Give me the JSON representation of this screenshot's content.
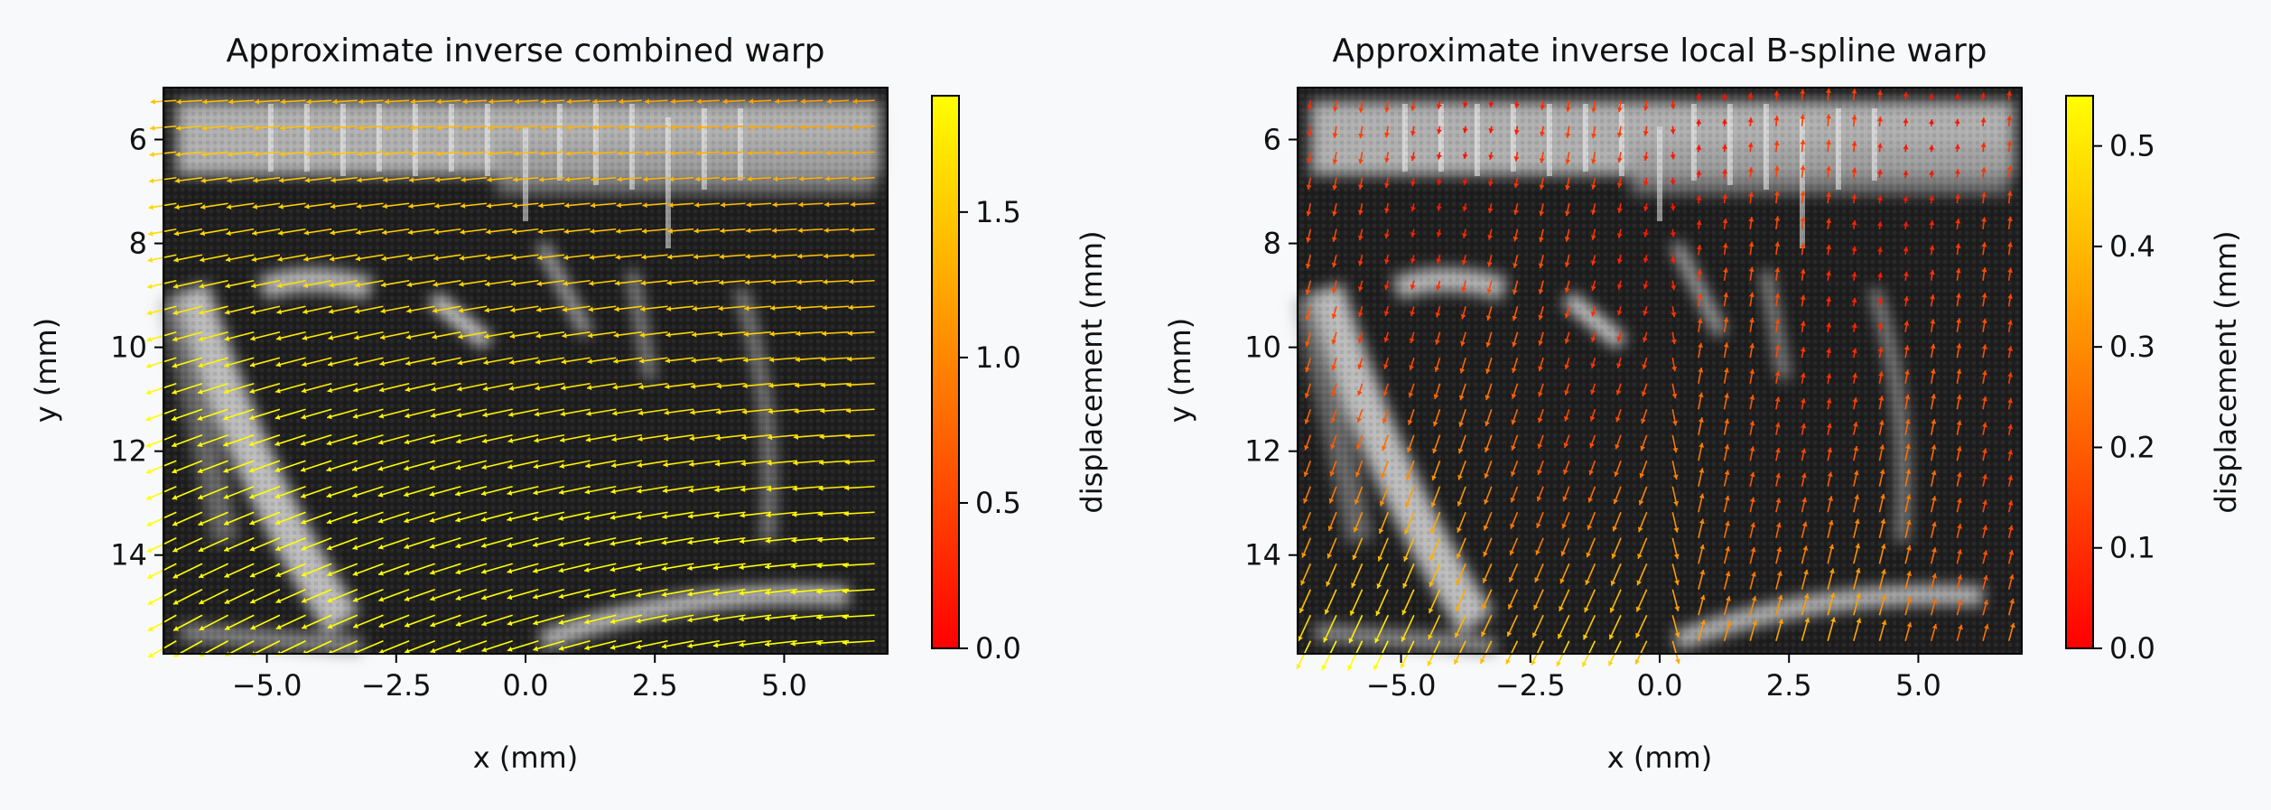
{
  "chart_data": [
    {
      "type": "heatmap",
      "subtype": "image-with-quiver",
      "title": "Approximate inverse combined warp",
      "xlabel": "x (mm)",
      "ylabel": "y (mm)",
      "xlim": [
        -7.0,
        7.0
      ],
      "ylim": [
        15.9,
        5.0
      ],
      "y_inverted": true,
      "xticks": [
        -5.0,
        -2.5,
        0.0,
        2.5,
        5.0
      ],
      "xtick_labels": [
        "−5.0",
        "−2.5",
        "0.0",
        "2.5",
        "5.0"
      ],
      "yticks": [
        6,
        8,
        10,
        12,
        14
      ],
      "ytick_labels": [
        "6",
        "8",
        "10",
        "12",
        "14"
      ],
      "background": "grayscale ultrasound image",
      "quiver": {
        "colormap": "autumn",
        "colors": [
          "#ff0000",
          "#ff8000",
          "#ffff00"
        ],
        "dominant_direction": "leftward, steeper downward-left toward bottom-left",
        "max_magnitude": 1.9
      },
      "colorbar": {
        "label": "displacement (mm)",
        "range": [
          0.0,
          1.9
        ],
        "ticks": [
          0.0,
          0.5,
          1.0,
          1.5
        ],
        "tick_labels": [
          "0.0",
          "0.5",
          "1.0",
          "1.5"
        ]
      }
    },
    {
      "type": "heatmap",
      "subtype": "image-with-quiver",
      "title": "Approximate inverse local B-spline warp",
      "xlabel": "x (mm)",
      "ylabel": "y (mm)",
      "xlim": [
        -7.0,
        7.0
      ],
      "ylim": [
        15.9,
        5.0
      ],
      "y_inverted": true,
      "xticks": [
        -5.0,
        -2.5,
        0.0,
        2.5,
        5.0
      ],
      "xtick_labels": [
        "−5.0",
        "−2.5",
        "0.0",
        "2.5",
        "5.0"
      ],
      "yticks": [
        6,
        8,
        10,
        12,
        14
      ],
      "ytick_labels": [
        "6",
        "8",
        "10",
        "12",
        "14"
      ],
      "background": "grayscale ultrasound image",
      "quiver": {
        "colormap": "autumn",
        "colors": [
          "#ff0000",
          "#ff8000",
          "#ffff00"
        ],
        "dominant_direction": "mostly vertical (downward), largest at lower-left",
        "max_magnitude": 0.55
      },
      "colorbar": {
        "label": "displacement (mm)",
        "range": [
          0.0,
          0.55
        ],
        "ticks": [
          0.0,
          0.1,
          0.2,
          0.3,
          0.4,
          0.5
        ],
        "tick_labels": [
          "0.0",
          "0.1",
          "0.2",
          "0.3",
          "0.4",
          "0.5"
        ]
      }
    }
  ]
}
